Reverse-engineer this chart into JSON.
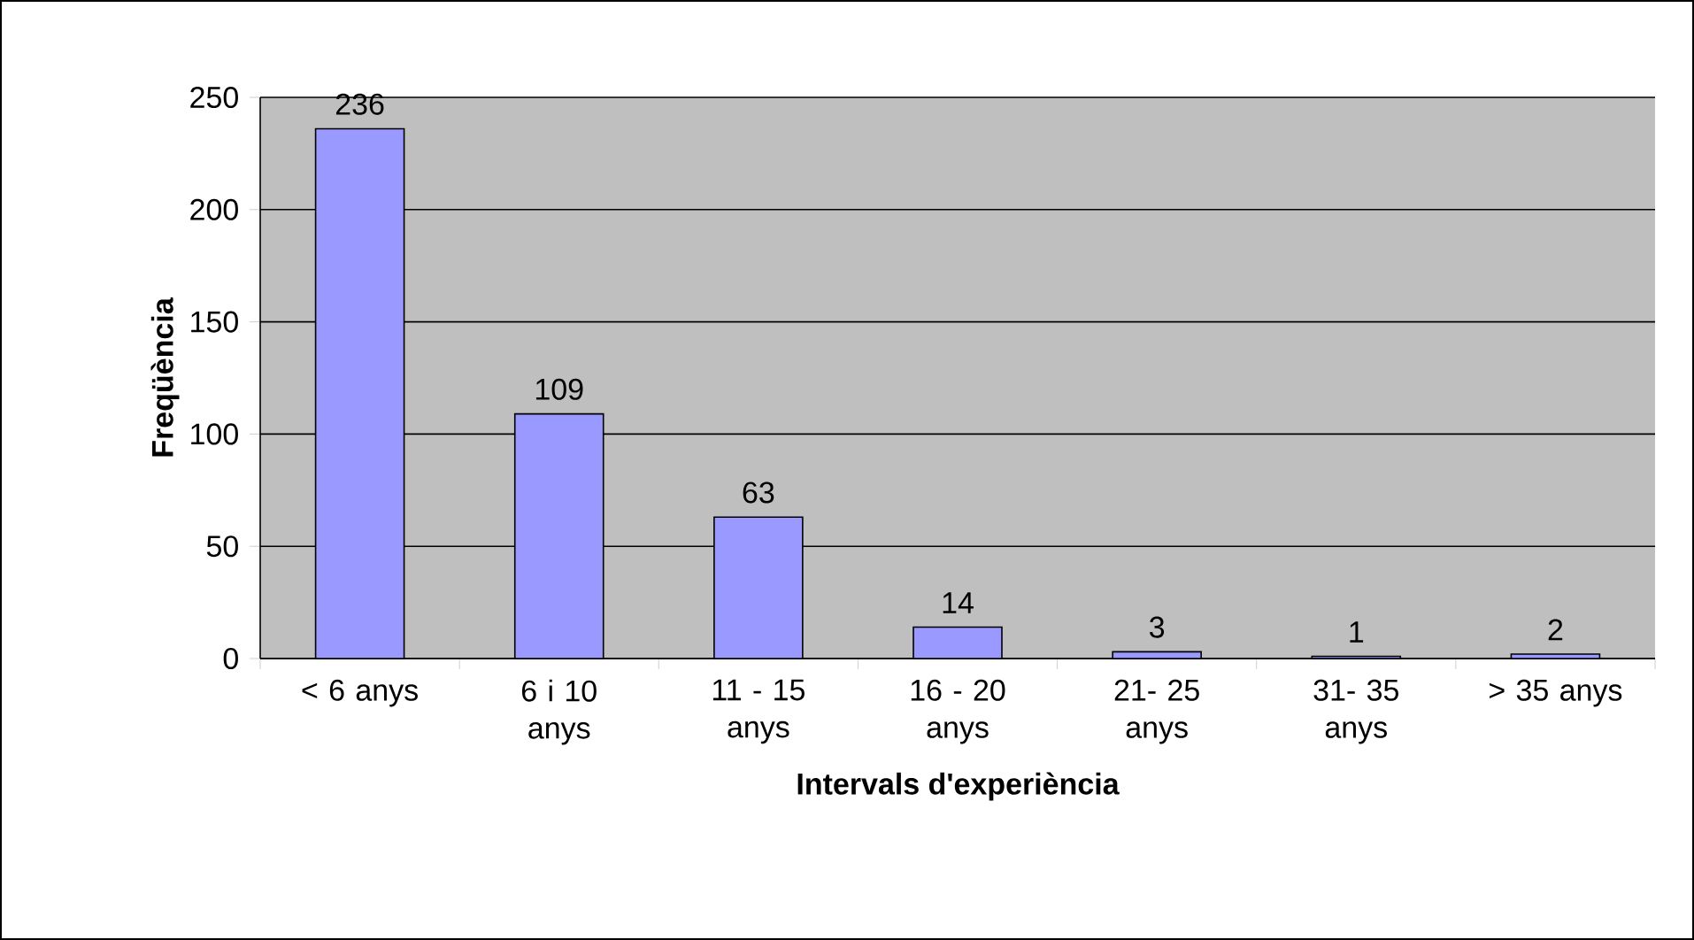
{
  "chart_data": {
    "type": "bar",
    "xlabel": "Intervals d'experiència",
    "ylabel": "Freqüència",
    "categories": [
      "< 6 anys",
      "6 i 10 anys",
      "11 - 15 anys",
      "16 - 20 anys",
      "21- 25 anys",
      "31- 35 anys",
      "> 35 anys"
    ],
    "values": [
      236,
      109,
      63,
      14,
      3,
      1,
      2
    ],
    "color": "#9999ff",
    "ylim": [
      0,
      250
    ],
    "yticks": [
      0,
      50,
      100,
      150,
      200,
      250
    ],
    "grid": "y",
    "data_labels": true
  }
}
